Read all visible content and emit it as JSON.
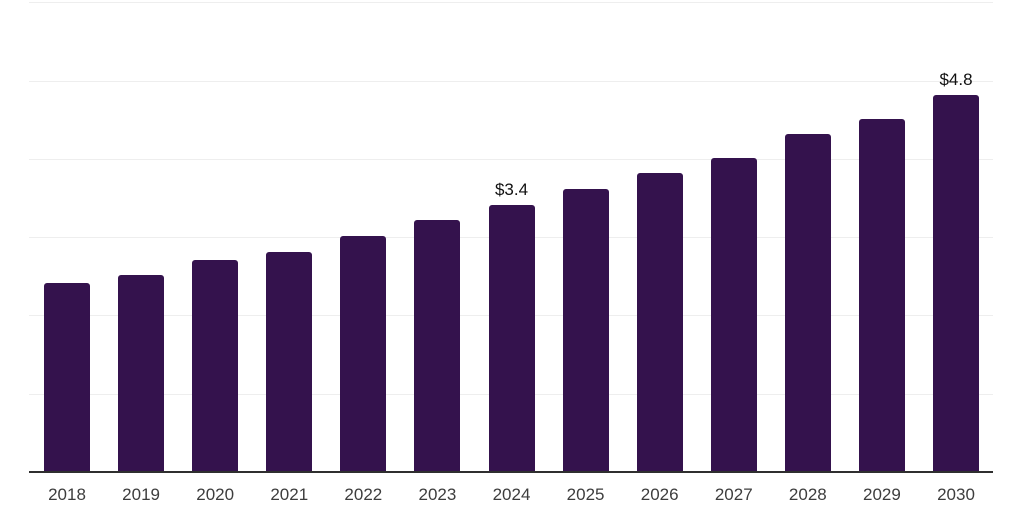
{
  "chart_data": {
    "type": "bar",
    "title": "",
    "xlabel": "",
    "ylabel": "",
    "categories": [
      "2018",
      "2019",
      "2020",
      "2021",
      "2022",
      "2023",
      "2024",
      "2025",
      "2026",
      "2027",
      "2028",
      "2029",
      "2030"
    ],
    "values": [
      2.4,
      2.5,
      2.7,
      2.8,
      3.0,
      3.2,
      3.4,
      3.6,
      3.8,
      4.0,
      4.3,
      4.5,
      4.8
    ],
    "value_labels": [
      "",
      "",
      "",
      "",
      "",
      "",
      "$3.4",
      "",
      "",
      "",
      "",
      "",
      "$4.8"
    ],
    "ylim": [
      0,
      6
    ],
    "gridline_step": 1,
    "grid": true,
    "legend": false,
    "colors": {
      "bar": "#34124D",
      "gridline": "#eeeeee",
      "axis_line": "#2f2f2f",
      "x_label_text": "#3d3d3d",
      "value_label_text": "#111111",
      "background": "#ffffff"
    }
  }
}
